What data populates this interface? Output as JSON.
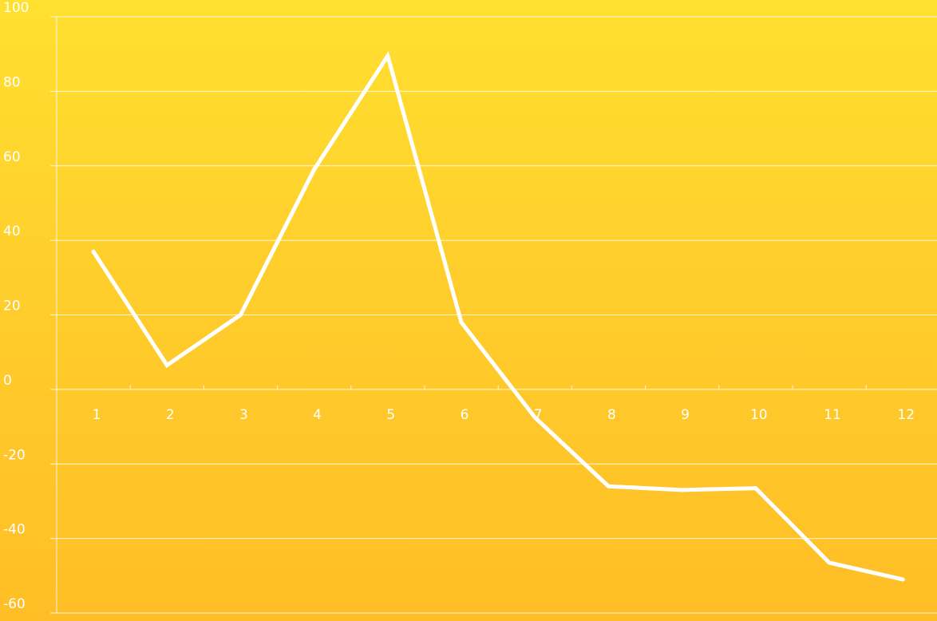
{
  "chart_data": {
    "type": "line",
    "title": "",
    "xlabel": "",
    "ylabel": "",
    "categories": [
      "1",
      "2",
      "3",
      "4",
      "5",
      "6",
      "7",
      "8",
      "9",
      "10",
      "11",
      "12"
    ],
    "series": [
      {
        "values": [
          37,
          6.5,
          20,
          59,
          89.5,
          18,
          -7.5,
          -26,
          -27,
          -26.5,
          -46.5,
          -51
        ]
      }
    ],
    "ylim": [
      -60,
      100
    ],
    "yticks": [
      100,
      80,
      60,
      40,
      20,
      0,
      -20,
      -40,
      -60
    ],
    "grid": true,
    "legend": "none",
    "colors": {
      "background_top": "#FFE030",
      "background_bottom": "#FFBE26",
      "line": "#FFFFFF",
      "grid": "#FFFFFF",
      "text": "#FFFFFF"
    }
  }
}
